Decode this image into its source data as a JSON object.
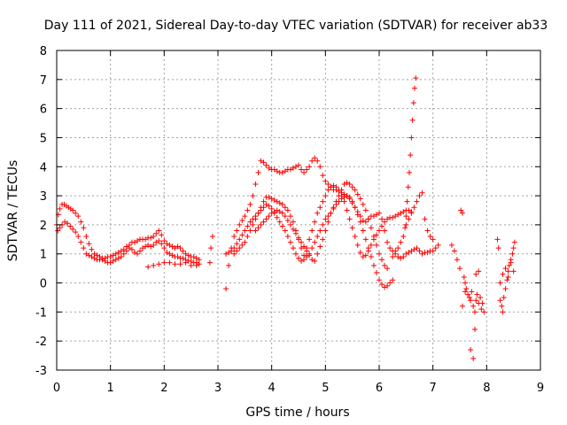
{
  "chart_data": {
    "type": "scatter",
    "title": "Day 111 of 2021, Sidereal Day-to-day VTEC variation (SDTVAR) for receiver ab33",
    "xlabel": "GPS time / hours",
    "ylabel": "SDTVAR / TECUs",
    "xlim": [
      0,
      9
    ],
    "ylim": [
      -3,
      8
    ],
    "xticks": [
      "0",
      "1",
      "2",
      "3",
      "4",
      "5",
      "6",
      "7",
      "8",
      "9"
    ],
    "yticks": [
      "-3",
      "-2",
      "-1",
      "0",
      "1",
      "2",
      "3",
      "4",
      "5",
      "6",
      "7",
      "8"
    ],
    "grid": true,
    "marker": "+",
    "color": "#ff0000",
    "series": [
      {
        "name": "SDTVAR",
        "x": [
          0.0,
          0.03,
          0.06,
          0.1,
          0.14,
          0.18,
          0.22,
          0.26,
          0.3,
          0.35,
          0.4,
          0.45,
          0.5,
          0.55,
          0.6,
          0.65,
          0.7,
          0.75,
          0.8,
          0.85,
          0.9,
          0.95,
          1.0,
          1.05,
          1.1,
          1.15,
          1.2,
          1.25,
          1.3,
          1.35,
          1.4,
          1.45,
          1.5,
          1.55,
          1.6,
          1.65,
          1.7,
          1.75,
          1.8,
          1.85,
          1.9,
          1.95,
          2.0,
          2.05,
          2.1,
          2.15,
          2.2,
          2.25,
          2.3,
          2.35,
          2.4,
          2.45,
          2.5,
          2.55,
          2.6,
          2.65,
          0.02,
          0.06,
          0.1,
          0.15,
          0.2,
          0.25,
          0.3,
          0.35,
          0.4,
          0.45,
          0.5,
          0.55,
          0.6,
          0.65,
          0.7,
          0.75,
          0.8,
          0.85,
          0.9,
          0.95,
          1.0,
          1.05,
          1.1,
          1.15,
          1.2,
          1.25,
          1.3,
          1.35,
          1.4,
          1.45,
          1.5,
          1.55,
          1.6,
          1.65,
          1.7,
          1.75,
          1.8,
          1.85,
          1.9,
          1.95,
          2.0,
          2.05,
          2.1,
          2.15,
          2.2,
          2.25,
          2.3,
          2.35,
          2.4,
          2.45,
          2.5,
          2.55,
          2.6,
          2.65,
          1.7,
          1.8,
          1.9,
          2.0,
          2.1,
          2.2,
          2.3,
          2.4,
          2.5,
          2.6,
          2.85,
          2.87,
          2.9,
          3.15,
          3.2,
          3.25,
          3.3,
          3.35,
          3.4,
          3.45,
          3.5,
          3.55,
          3.6,
          3.65,
          3.7,
          3.75,
          3.8,
          3.85,
          3.9,
          3.95,
          4.0,
          4.05,
          4.1,
          4.15,
          4.2,
          4.25,
          4.3,
          4.35,
          4.4,
          4.45,
          4.5,
          4.55,
          4.6,
          4.65,
          4.7,
          4.75,
          4.8,
          4.85,
          4.9,
          4.95,
          5.0,
          5.05,
          5.1,
          5.15,
          5.2,
          5.25,
          5.3,
          5.35,
          5.4,
          5.45,
          5.5,
          5.55,
          5.6,
          5.65,
          5.7,
          5.75,
          5.8,
          5.85,
          5.9,
          5.95,
          6.0,
          6.05,
          6.1,
          6.15,
          6.2,
          6.25,
          6.3,
          6.35,
          6.4,
          6.45,
          6.5,
          6.55,
          6.6,
          6.65,
          6.7,
          6.75,
          6.8,
          6.85,
          6.9,
          6.95,
          7.0,
          7.05,
          7.1,
          3.15,
          3.2,
          3.25,
          3.3,
          3.35,
          3.4,
          3.45,
          3.5,
          3.55,
          3.6,
          3.65,
          3.7,
          3.75,
          3.8,
          3.85,
          3.9,
          3.95,
          4.0,
          4.05,
          4.1,
          4.15,
          4.2,
          4.25,
          4.3,
          4.35,
          4.4,
          4.45,
          4.5,
          4.55,
          4.6,
          4.65,
          4.7,
          4.75,
          4.8,
          4.85,
          4.9,
          4.95,
          5.0,
          5.05,
          5.1,
          5.15,
          5.2,
          5.25,
          5.3,
          5.35,
          5.4,
          5.45,
          5.5,
          5.55,
          5.6,
          5.65,
          5.7,
          5.75,
          5.8,
          5.85,
          5.9,
          5.95,
          6.0,
          6.05,
          6.1,
          6.15,
          6.2,
          6.25,
          3.3,
          3.35,
          3.4,
          3.45,
          3.5,
          3.55,
          3.6,
          3.65,
          3.7,
          3.75,
          3.8,
          3.85,
          3.9,
          3.95,
          4.0,
          4.05,
          4.1,
          4.15,
          4.2,
          4.25,
          4.3,
          4.35,
          4.4,
          4.45,
          4.5,
          4.55,
          4.6,
          4.65,
          4.7,
          4.75,
          4.8,
          4.85,
          4.9,
          4.95,
          5.0,
          5.05,
          5.1,
          5.15,
          5.2,
          5.25,
          5.3,
          5.35,
          5.4,
          5.45,
          5.5,
          5.55,
          5.6,
          5.65,
          5.7,
          5.75,
          5.8,
          5.85,
          5.9,
          5.95,
          6.0,
          6.05,
          6.1,
          6.15,
          6.2,
          6.25,
          6.3,
          6.35,
          6.4,
          6.45,
          6.5,
          6.55,
          6.6,
          3.7,
          3.75,
          3.8,
          3.85,
          3.9,
          3.95,
          4.0,
          4.05,
          4.1,
          4.15,
          4.2,
          4.25,
          4.3,
          4.35,
          4.4,
          4.45,
          4.5,
          4.55,
          4.6,
          4.65,
          4.7,
          4.75,
          4.8,
          4.85,
          4.9,
          4.95,
          5.0,
          5.05,
          5.1,
          5.15,
          5.2,
          5.25,
          5.3,
          5.35,
          5.4,
          5.45,
          5.5,
          5.55,
          5.6,
          5.65,
          5.7,
          5.75,
          5.8,
          5.85,
          5.9,
          5.95,
          6.0,
          6.05,
          6.1,
          6.15,
          6.25,
          6.3,
          6.35,
          6.4,
          6.45,
          6.48,
          6.5,
          6.52,
          6.54,
          6.56,
          6.58,
          6.6,
          6.62,
          6.64,
          6.66,
          6.68,
          6.5,
          6.55,
          6.6,
          6.65,
          6.7,
          6.75,
          6.8,
          6.85,
          6.9,
          6.95,
          7.0,
          7.35,
          7.4,
          7.45,
          7.5,
          7.52,
          7.55,
          7.58,
          7.6,
          7.62,
          7.65,
          7.68,
          7.7,
          7.72,
          7.75,
          7.78,
          7.8,
          7.82,
          7.85,
          7.88,
          7.9,
          7.92,
          7.95,
          7.55,
          7.6,
          7.7,
          7.75,
          7.78,
          7.8,
          7.85,
          8.2,
          8.22,
          8.25,
          8.28,
          8.3,
          8.32,
          8.35,
          8.38,
          8.4,
          8.42,
          8.45,
          8.48,
          8.5,
          8.52,
          8.25,
          8.3,
          8.35,
          8.4,
          8.45,
          8.5
        ],
        "y": [
          2.0,
          2.35,
          2.55,
          2.7,
          2.7,
          2.65,
          2.6,
          2.55,
          2.5,
          2.4,
          2.3,
          2.1,
          1.9,
          1.6,
          1.35,
          1.15,
          1.0,
          0.95,
          0.9,
          0.85,
          0.85,
          0.9,
          0.9,
          0.95,
          1.0,
          1.05,
          1.1,
          1.15,
          1.25,
          1.3,
          1.4,
          1.4,
          1.45,
          1.5,
          1.5,
          1.5,
          1.55,
          1.55,
          1.6,
          1.7,
          1.8,
          1.65,
          1.45,
          1.35,
          1.3,
          1.25,
          1.2,
          1.25,
          1.2,
          1.1,
          1.0,
          0.95,
          0.9,
          0.9,
          0.85,
          0.8,
          1.8,
          1.9,
          2.0,
          2.1,
          2.05,
          1.95,
          1.85,
          1.75,
          1.6,
          1.4,
          1.2,
          1.0,
          0.95,
          0.9,
          0.85,
          0.8,
          0.8,
          0.8,
          0.75,
          0.7,
          0.7,
          0.75,
          0.8,
          0.85,
          0.9,
          1.0,
          1.1,
          1.2,
          1.15,
          1.05,
          1.0,
          1.1,
          1.2,
          1.25,
          1.3,
          1.25,
          1.3,
          1.4,
          1.45,
          1.35,
          1.2,
          1.05,
          1.0,
          0.95,
          0.9,
          0.9,
          0.85,
          0.85,
          0.8,
          0.75,
          0.75,
          0.7,
          0.7,
          0.65,
          0.55,
          0.6,
          0.65,
          0.7,
          0.7,
          0.65,
          0.65,
          0.7,
          0.6,
          0.6,
          0.7,
          1.2,
          1.6,
          -0.2,
          0.6,
          1.2,
          1.6,
          1.8,
          2.0,
          2.15,
          2.3,
          2.5,
          2.7,
          3.0,
          3.4,
          3.8,
          4.2,
          4.15,
          4.05,
          3.95,
          3.9,
          3.9,
          3.85,
          3.8,
          3.8,
          3.85,
          3.9,
          3.9,
          3.95,
          4.0,
          4.05,
          3.9,
          3.8,
          3.9,
          4.0,
          4.2,
          4.3,
          4.2,
          4.0,
          3.7,
          3.5,
          3.4,
          3.3,
          3.2,
          3.2,
          3.15,
          3.1,
          3.05,
          3.0,
          2.9,
          2.75,
          2.6,
          2.45,
          2.3,
          2.15,
          2.1,
          2.2,
          2.3,
          2.3,
          2.35,
          2.4,
          2.2,
          1.8,
          1.4,
          1.2,
          1.1,
          1.0,
          0.9,
          0.85,
          0.9,
          1.0,
          1.05,
          1.1,
          1.15,
          1.2,
          1.1,
          1.0,
          1.05,
          1.05,
          1.1,
          1.1,
          1.2,
          1.3,
          1.0,
          1.05,
          1.1,
          1.2,
          1.35,
          1.5,
          1.65,
          1.8,
          1.95,
          2.1,
          2.2,
          2.3,
          2.4,
          2.5,
          2.6,
          2.7,
          2.65,
          2.55,
          2.4,
          2.25,
          2.1,
          1.95,
          1.8,
          1.6,
          1.4,
          1.2,
          1.0,
          0.85,
          0.75,
          0.8,
          0.9,
          1.0,
          1.2,
          1.4,
          1.6,
          1.8,
          2.0,
          2.2,
          2.3,
          2.4,
          2.55,
          2.7,
          2.8,
          2.9,
          2.95,
          3.0,
          2.95,
          2.8,
          2.6,
          2.35,
          2.1,
          1.8,
          1.5,
          1.2,
          0.9,
          0.6,
          0.35,
          0.1,
          -0.05,
          -0.15,
          -0.1,
          0.0,
          0.1,
          1.0,
          1.1,
          1.2,
          1.3,
          1.4,
          1.6,
          1.8,
          2.0,
          2.2,
          2.4,
          2.6,
          2.8,
          2.95,
          2.95,
          2.9,
          2.85,
          2.8,
          2.75,
          2.7,
          2.6,
          2.5,
          2.3,
          2.1,
          1.8,
          1.5,
          1.2,
          0.95,
          1.2,
          1.5,
          1.8,
          2.1,
          2.4,
          2.6,
          2.8,
          3.0,
          3.2,
          3.3,
          3.35,
          3.3,
          3.2,
          3.0,
          2.8,
          2.5,
          2.2,
          1.9,
          1.6,
          1.3,
          1.05,
          0.9,
          0.95,
          1.1,
          1.3,
          1.5,
          1.65,
          1.8,
          1.95,
          2.1,
          2.2,
          2.25,
          2.25,
          2.3,
          2.35,
          2.4,
          2.45,
          2.5,
          2.5,
          2.45,
          1.8,
          1.9,
          2.0,
          2.1,
          2.2,
          2.3,
          2.4,
          2.45,
          2.5,
          2.45,
          2.4,
          2.3,
          2.15,
          2.0,
          1.85,
          1.7,
          1.55,
          1.4,
          1.25,
          1.1,
          0.95,
          0.8,
          0.75,
          1.0,
          1.25,
          1.5,
          1.8,
          2.1,
          2.4,
          2.6,
          2.8,
          3.0,
          3.2,
          3.4,
          3.45,
          3.4,
          3.3,
          3.2,
          3.05,
          2.9,
          2.7,
          2.5,
          2.2,
          1.9,
          1.6,
          1.3,
          1.0,
          0.8,
          0.6,
          0.5,
          0.9,
          1.1,
          1.2,
          1.4,
          1.6,
          1.9,
          2.3,
          2.8,
          3.3,
          3.8,
          4.4,
          5.0,
          5.6,
          6.2,
          6.7,
          7.05,
          2.0,
          2.2,
          2.4,
          2.6,
          2.8,
          3.0,
          3.1,
          2.2,
          1.8,
          1.6,
          1.5,
          1.3,
          1.1,
          0.8,
          0.5,
          2.5,
          2.4,
          0.2,
          0.0,
          -0.2,
          -0.4,
          -0.5,
          -0.6,
          -0.3,
          -0.8,
          -1.0,
          -0.6,
          -0.4,
          -0.7,
          -0.5,
          -0.9,
          -0.7,
          -1.0,
          -0.8,
          -0.3,
          -2.3,
          -2.6,
          -1.6,
          0.3,
          0.4,
          1.5,
          1.2,
          -0.6,
          -0.8,
          -1.0,
          -0.5,
          -0.2,
          0.1,
          0.4,
          0.6,
          0.8,
          1.0,
          1.2,
          1.4,
          0.0,
          0.3,
          0.5,
          0.2,
          0.7,
          0.4
        ]
      }
    ]
  }
}
